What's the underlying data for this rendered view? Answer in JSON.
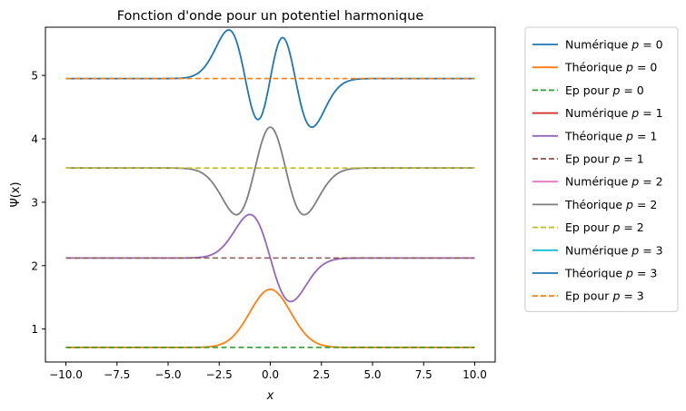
{
  "chart_data": {
    "type": "line",
    "title": "Fonction d'onde pour un potentiel harmonique",
    "xlabel": "x",
    "ylabel": "Ψ(x)",
    "xlim": [
      -11.0,
      11.0
    ],
    "ylim": [
      0.48,
      5.76
    ],
    "xticks": [
      -10.0,
      -7.5,
      -5.0,
      -2.5,
      0.0,
      2.5,
      5.0,
      7.5,
      10.0
    ],
    "xtick_labels": [
      "−10.0",
      "−7.5",
      "−5.0",
      "−2.5",
      "0.0",
      "2.5",
      "5.0",
      "7.5",
      "10.0"
    ],
    "yticks": [
      1,
      2,
      3,
      4,
      5
    ],
    "ytick_labels": [
      "1",
      "2",
      "3",
      "4",
      "5"
    ],
    "grid": false,
    "legend_position": "outside-right",
    "x_range": [
      -10,
      10
    ],
    "curve_model": "baseline + amplitude * Hermite-Gauss wavefunction psi_p(x / scale)",
    "series": [
      {
        "name": "Numérique p = 0",
        "p_label": "0",
        "color": "#1f77b4",
        "style": "solid",
        "kind": "wave",
        "order": 0,
        "baseline": 0.71,
        "amplitude": 0.915,
        "scale": 1.0,
        "visible": false
      },
      {
        "name": "Théorique p = 0",
        "p_label": "0",
        "color": "#ff7f0e",
        "style": "solid",
        "kind": "wave",
        "order": 0,
        "baseline": 0.71,
        "amplitude": 0.915,
        "scale": 1.0,
        "visible": true
      },
      {
        "name": "Ep pour p = 0",
        "p_label": "0",
        "color": "#2ca02c",
        "style": "dashed",
        "kind": "level",
        "level": 0.71,
        "visible": true
      },
      {
        "name": "Numérique p = 1",
        "p_label": "1",
        "color": "#d62728",
        "style": "solid",
        "kind": "wave",
        "order": 1,
        "baseline": 2.12,
        "amplitude": -0.8,
        "scale": 1.0,
        "visible": false
      },
      {
        "name": "Théorique p = 1",
        "p_label": "1",
        "color": "#9467bd",
        "style": "solid",
        "kind": "wave",
        "order": 1,
        "baseline": 2.12,
        "amplitude": -0.8,
        "scale": 1.0,
        "visible": true
      },
      {
        "name": "Ep pour p = 1",
        "p_label": "1",
        "color": "#8c564b",
        "style": "dashed",
        "kind": "level",
        "level": 2.12,
        "visible": true
      },
      {
        "name": "Numérique p = 2",
        "p_label": "2",
        "color": "#e377c2",
        "style": "solid",
        "kind": "wave",
        "order": 2,
        "baseline": 3.54,
        "amplitude": -0.91,
        "scale": 1.05,
        "visible": false
      },
      {
        "name": "Théorique p = 2",
        "p_label": "2",
        "color": "#7f7f7f",
        "style": "solid",
        "kind": "wave",
        "order": 2,
        "baseline": 3.54,
        "amplitude": -0.91,
        "scale": 1.05,
        "visible": true
      },
      {
        "name": "Ep pour p = 2",
        "p_label": "2",
        "color": "#bcbd22",
        "style": "dashed",
        "kind": "level",
        "level": 3.54,
        "visible": true
      },
      {
        "name": "Numérique p = 3",
        "p_label": "3",
        "color": "#17becf",
        "style": "solid",
        "kind": "wave",
        "order": 3,
        "baseline": 4.95,
        "amplitude": -0.98,
        "scale": 1.0,
        "visible": false
      },
      {
        "name": "Théorique p = 3",
        "p_label": "3",
        "color": "#1f77b4",
        "style": "solid",
        "kind": "wave",
        "order": 3,
        "baseline": 4.95,
        "amplitude": -0.98,
        "scale": 1.0,
        "visible": true
      },
      {
        "name": "Ep pour p = 3",
        "p_label": "3",
        "color": "#ff7f0e",
        "style": "dashed",
        "kind": "level",
        "level": 4.95,
        "visible": true
      }
    ]
  }
}
